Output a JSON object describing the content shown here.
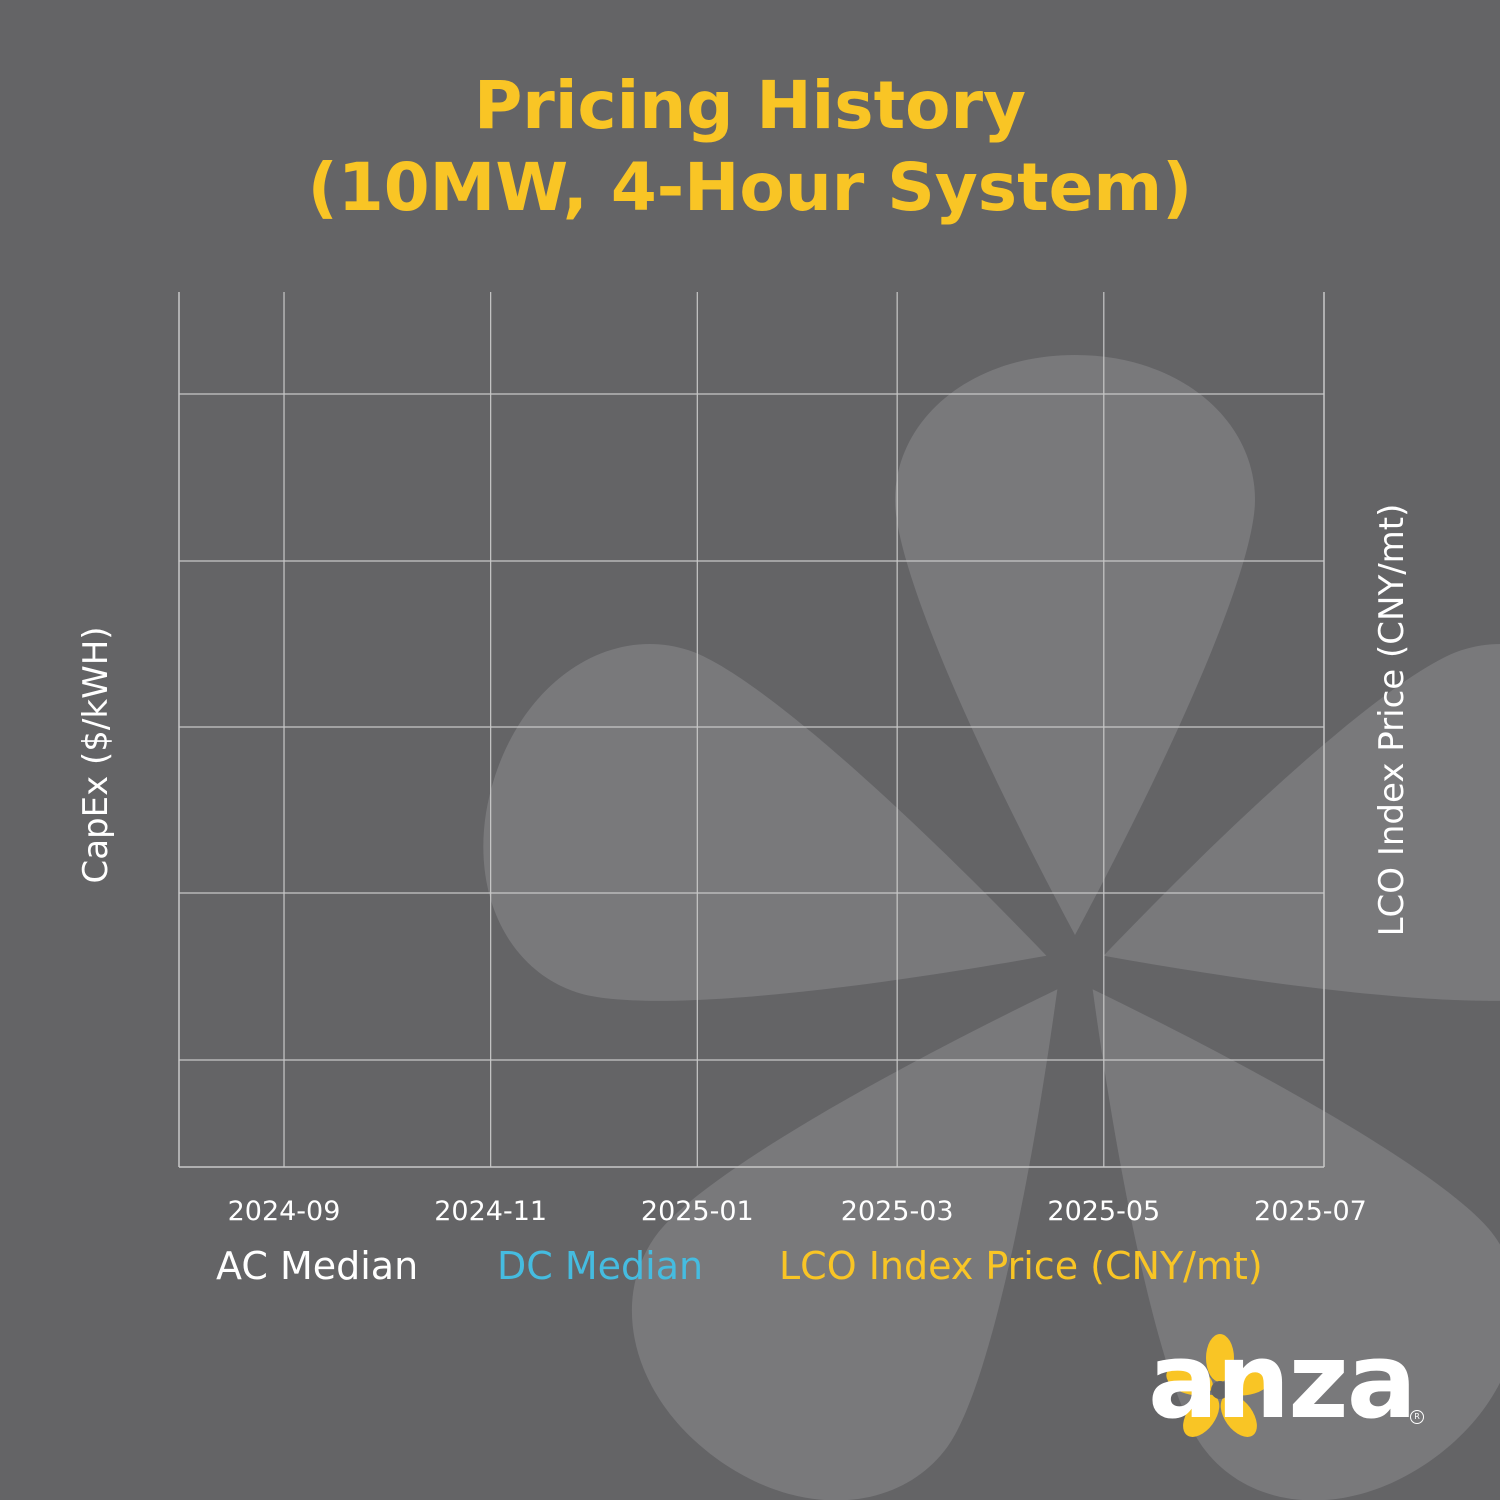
{
  "title_line1": "Pricing History",
  "title_line2": "(10MW, 4-Hour System)",
  "colors": {
    "background": "#646466",
    "title": "#F9C525",
    "ac": "#FFFFFF",
    "dc": "#45BCE0",
    "lco": "#F9C525",
    "grid": "#C8C8C8",
    "watermark": "#8A8A8D",
    "logo_petal": "#F9C525"
  },
  "chart_data": {
    "type": "line",
    "title": "Pricing History (10MW, 4-Hour System)",
    "ylabel_left": "CapEx ($/kWH)",
    "ylabel_right": "LCO Index Price (CNY/mt)",
    "x_ticks": [
      "2024-09",
      "2024-11",
      "2025-01",
      "2025-03",
      "2025-05",
      "2025-07"
    ],
    "xlim": [
      "2024-08-01",
      "2025-07-05"
    ],
    "grid": true,
    "series": [
      {
        "name": "AC Median",
        "axis": "left",
        "values": []
      },
      {
        "name": "DC Median",
        "axis": "left",
        "values": []
      },
      {
        "name": "LCO Index Price (CNY/mt)",
        "axis": "right",
        "values": []
      }
    ],
    "legend_position": "bottom"
  },
  "logo": {
    "text": "anza",
    "icon": "flower-logo-icon"
  }
}
